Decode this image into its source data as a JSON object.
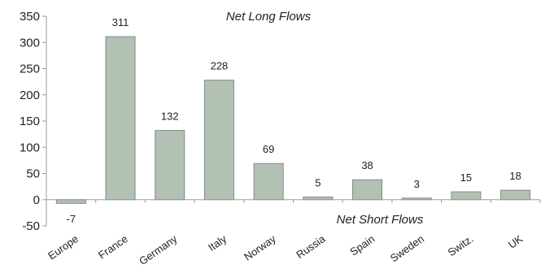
{
  "chart_data": {
    "type": "bar",
    "categories": [
      "Europe",
      "France",
      "Germany",
      "Italy",
      "Norway",
      "Russia",
      "Spain",
      "Sweden",
      "Switz.",
      "UK"
    ],
    "values": [
      -7,
      311,
      132,
      228,
      69,
      5,
      38,
      3,
      15,
      18
    ],
    "data_labels": [
      "-7",
      "311",
      "132",
      "228",
      "69",
      "5",
      "38",
      "3",
      "15",
      "18"
    ],
    "ylim": [
      -50,
      350
    ],
    "yticks": [
      -50,
      0,
      50,
      100,
      150,
      200,
      250,
      300,
      350
    ],
    "annotations": {
      "top": "Net Long Flows",
      "bottom": "Net Short Flows"
    },
    "grid": false,
    "bar_fill": "#b3c1b5",
    "bar_stroke": "#7f8c82",
    "axis_color": "#9a9a9a"
  }
}
